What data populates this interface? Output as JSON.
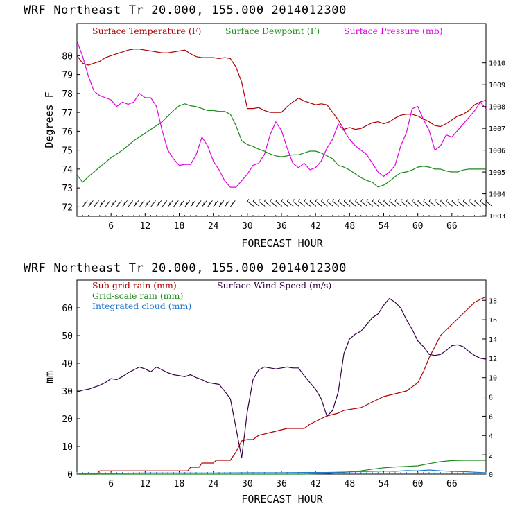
{
  "top_panel": {
    "title": "WRF  Northeast Tr  20.000, 155.000  2014012300",
    "ylabel": "Degrees F",
    "xlabel": "FORECAST HOUR"
  },
  "bottom_panel": {
    "title": "WRF  Northeast Tr  20.000, 155.000  2014012300",
    "ylabel": "mm",
    "xlabel": "FORECAST HOUR"
  },
  "colors": {
    "temperature": "#b00000",
    "dewpoint": "#1a8a1a",
    "pressure": "#e000e0",
    "subgrid_rain": "#b00000",
    "gridscale_rain": "#1a8a1a",
    "cloud": "#1e78d0",
    "wind": "#330044",
    "wind_barb": "#000000"
  },
  "chart_data": [
    {
      "type": "line",
      "title": "WRF  Northeast Tr  20.000, 155.000  2014012300",
      "xlabel": "FORECAST HOUR",
      "ylabel": "Degrees F",
      "xlim": [
        0,
        72
      ],
      "x_ticks": [
        6,
        12,
        18,
        24,
        30,
        36,
        42,
        48,
        54,
        60,
        66
      ],
      "ylim": [
        71.5,
        81.7
      ],
      "y_ticks": [
        72,
        73,
        74,
        75,
        76,
        77,
        78,
        79,
        80
      ],
      "y2lim": [
        1002.97,
        1011.8
      ],
      "y2_ticks": [
        1003,
        1004,
        1005,
        1006,
        1007,
        1008,
        1009,
        1010
      ],
      "grid": false,
      "legend_position": "top",
      "series": [
        {
          "name": "Surface Temperature (F)",
          "axis": "left",
          "x": [
            0,
            1,
            2,
            3,
            4,
            5,
            6,
            7,
            8,
            9,
            10,
            11,
            12,
            13,
            14,
            15,
            16,
            17,
            18,
            19,
            20,
            21,
            22,
            23,
            24,
            25,
            26,
            27,
            28,
            29,
            30,
            31,
            32,
            33,
            34,
            35,
            36,
            37,
            38,
            39,
            40,
            41,
            42,
            43,
            44,
            45,
            46,
            47,
            48,
            49,
            50,
            51,
            52,
            53,
            54,
            55,
            56,
            57,
            58,
            59,
            60,
            61,
            62,
            63,
            64,
            65,
            66,
            67,
            68,
            69,
            70,
            71,
            72
          ],
          "values": [
            80.0,
            79.6,
            79.5,
            79.6,
            79.7,
            79.9,
            80.0,
            80.1,
            80.2,
            80.3,
            80.35,
            80.35,
            80.3,
            80.25,
            80.2,
            80.15,
            80.15,
            80.2,
            80.25,
            80.3,
            80.1,
            79.95,
            79.9,
            79.9,
            79.9,
            79.85,
            79.9,
            79.85,
            79.4,
            78.6,
            77.2,
            77.2,
            77.25,
            77.1,
            77.0,
            77.0,
            77.0,
            77.3,
            77.55,
            77.75,
            77.6,
            77.5,
            77.4,
            77.45,
            77.4,
            77.0,
            76.6,
            76.1,
            76.2,
            76.1,
            76.15,
            76.3,
            76.45,
            76.5,
            76.4,
            76.5,
            76.7,
            76.85,
            76.9,
            76.9,
            76.8,
            76.65,
            76.5,
            76.3,
            76.25,
            76.4,
            76.6,
            76.8,
            76.9,
            77.1,
            77.4,
            77.55,
            77.65
          ]
        },
        {
          "name": "Surface Dewpoint (F)",
          "axis": "left",
          "x": [
            0,
            1,
            2,
            3,
            4,
            5,
            6,
            7,
            8,
            9,
            10,
            11,
            12,
            13,
            14,
            15,
            16,
            17,
            18,
            19,
            20,
            21,
            22,
            23,
            24,
            25,
            26,
            27,
            28,
            29,
            30,
            31,
            32,
            33,
            34,
            35,
            36,
            37,
            38,
            39,
            40,
            41,
            42,
            43,
            44,
            45,
            46,
            47,
            48,
            49,
            50,
            51,
            52,
            53,
            54,
            55,
            56,
            57,
            58,
            59,
            60,
            61,
            62,
            63,
            64,
            65,
            66,
            67,
            68,
            69,
            70,
            71,
            72
          ],
          "values": [
            73.7,
            73.3,
            73.6,
            73.85,
            74.1,
            74.35,
            74.6,
            74.8,
            75.0,
            75.25,
            75.5,
            75.7,
            75.9,
            76.1,
            76.3,
            76.5,
            76.8,
            77.1,
            77.35,
            77.45,
            77.35,
            77.3,
            77.2,
            77.1,
            77.1,
            77.05,
            77.05,
            76.9,
            76.3,
            75.5,
            75.3,
            75.2,
            75.05,
            74.95,
            74.8,
            74.7,
            74.65,
            74.7,
            74.75,
            74.75,
            74.85,
            74.95,
            74.95,
            74.85,
            74.7,
            74.55,
            74.2,
            74.1,
            73.95,
            73.75,
            73.55,
            73.4,
            73.3,
            73.05,
            73.15,
            73.35,
            73.6,
            73.8,
            73.85,
            73.95,
            74.1,
            74.15,
            74.1,
            74.0,
            74.0,
            73.9,
            73.85,
            73.85,
            73.95,
            74.0,
            74.0,
            74.0,
            74.0
          ]
        },
        {
          "name": "Surface Pressure (mb)",
          "axis": "right",
          "x": [
            0,
            1,
            2,
            3,
            4,
            5,
            6,
            7,
            8,
            9,
            10,
            11,
            12,
            13,
            14,
            15,
            16,
            17,
            18,
            19,
            20,
            21,
            22,
            23,
            24,
            25,
            26,
            27,
            28,
            29,
            30,
            31,
            32,
            33,
            34,
            35,
            36,
            37,
            38,
            39,
            40,
            41,
            42,
            43,
            44,
            45,
            46,
            47,
            48,
            49,
            50,
            51,
            52,
            53,
            54,
            55,
            56,
            57,
            58,
            59,
            60,
            61,
            62,
            63,
            64,
            65,
            66,
            67,
            68,
            69,
            70,
            71,
            72
          ],
          "values": [
            1011.0,
            1010.3,
            1009.4,
            1008.7,
            1008.5,
            1008.4,
            1008.3,
            1008.0,
            1008.2,
            1008.1,
            1008.2,
            1008.6,
            1008.4,
            1008.4,
            1008.0,
            1006.9,
            1006.0,
            1005.6,
            1005.3,
            1005.35,
            1005.35,
            1005.8,
            1006.6,
            1006.2,
            1005.5,
            1005.1,
            1004.6,
            1004.3,
            1004.3,
            1004.6,
            1004.9,
            1005.3,
            1005.4,
            1005.8,
            1006.7,
            1007.3,
            1006.9,
            1006.1,
            1005.4,
            1005.2,
            1005.4,
            1005.1,
            1005.2,
            1005.5,
            1006.1,
            1006.5,
            1007.2,
            1006.9,
            1006.5,
            1006.2,
            1006.0,
            1005.8,
            1005.4,
            1005.0,
            1004.8,
            1005.0,
            1005.3,
            1006.2,
            1006.8,
            1007.9,
            1008.0,
            1007.4,
            1006.9,
            1006.0,
            1006.2,
            1006.7,
            1006.6,
            1006.9,
            1007.2,
            1007.5,
            1007.8,
            1008.2,
            1007.9
          ]
        }
      ],
      "wind_barbs": {
        "x_start": 1,
        "x_end": 72,
        "gap": [
          27.5,
          29.5
        ]
      }
    },
    {
      "type": "line",
      "title": "WRF  Northeast Tr  20.000, 155.000  2014012300",
      "xlabel": "FORECAST HOUR",
      "ylabel": "mm",
      "xlim": [
        0,
        72
      ],
      "x_ticks": [
        6,
        12,
        18,
        24,
        30,
        36,
        42,
        48,
        54,
        60,
        66
      ],
      "ylim": [
        0,
        70
      ],
      "y_ticks": [
        0,
        10,
        20,
        30,
        40,
        50,
        60
      ],
      "y2lim": [
        0,
        20.1
      ],
      "y2_ticks": [
        0,
        2,
        4,
        6,
        8,
        10,
        12,
        14,
        16,
        18
      ],
      "grid": false,
      "legend_position": "top",
      "series": [
        {
          "name": "Sub-grid rain (mm)",
          "axis": "left",
          "x": [
            0,
            3.5,
            4,
            19.5,
            20,
            21.5,
            22,
            24,
            24.5,
            27,
            28,
            29,
            30,
            31,
            32,
            34,
            36,
            37,
            40,
            41,
            43,
            44,
            46,
            47,
            50,
            52,
            54,
            56,
            58,
            60,
            61,
            62,
            63,
            64,
            66,
            68,
            70,
            72
          ],
          "values": [
            0,
            0,
            1.2,
            1.2,
            2.5,
            2.5,
            4,
            4,
            5,
            5,
            8,
            12,
            12.5,
            12.5,
            14,
            15,
            16,
            16.5,
            16.5,
            18,
            20,
            21,
            22,
            23,
            24,
            26,
            28,
            29,
            30,
            33,
            37,
            42,
            46,
            50,
            54,
            58,
            62,
            64
          ]
        },
        {
          "name": "Grid-scale rain (mm)",
          "axis": "left",
          "x": [
            0,
            40,
            44,
            46,
            48,
            50,
            52,
            54,
            56,
            58,
            60,
            62,
            64,
            66,
            68,
            70,
            72
          ],
          "values": [
            0,
            0,
            0.2,
            0.5,
            0.8,
            1.2,
            1.8,
            2.3,
            2.6,
            2.8,
            3.0,
            3.8,
            4.5,
            4.9,
            5.0,
            5.0,
            5.0
          ]
        },
        {
          "name": "Integrated cloud (mm)",
          "axis": "left",
          "x": [
            0,
            6,
            12,
            18,
            24,
            30,
            36,
            40,
            44,
            48,
            52,
            54,
            56,
            58,
            60,
            62,
            64,
            66,
            68,
            70,
            72
          ],
          "values": [
            0.3,
            0.3,
            0.4,
            0.4,
            0.4,
            0.5,
            0.5,
            0.6,
            0.6,
            0.8,
            1.0,
            1.1,
            1.0,
            1.3,
            1.2,
            1.5,
            1.2,
            1.0,
            0.9,
            0.7,
            0.5
          ]
        },
        {
          "name": "Surface Wind Speed (m/s)",
          "axis": "right",
          "x": [
            0,
            1,
            2,
            3,
            4,
            5,
            6,
            7,
            8,
            9,
            10,
            11,
            12,
            13,
            14,
            15,
            16,
            17,
            18,
            19,
            20,
            21,
            22,
            23,
            24,
            25,
            26,
            27,
            28,
            29,
            30,
            31,
            32,
            33,
            34,
            35,
            36,
            37,
            38,
            39,
            40,
            41,
            42,
            43,
            44,
            45,
            46,
            47,
            48,
            49,
            50,
            51,
            52,
            53,
            54,
            55,
            56,
            57,
            58,
            59,
            60,
            61,
            62,
            63,
            64,
            65,
            66,
            67,
            68,
            69,
            70,
            71,
            72
          ],
          "values": [
            8.5,
            8.7,
            8.8,
            9.0,
            9.2,
            9.5,
            9.9,
            9.8,
            10.1,
            10.5,
            10.8,
            11.1,
            10.9,
            10.6,
            11.1,
            10.8,
            10.5,
            10.3,
            10.2,
            10.1,
            10.3,
            10.0,
            9.8,
            9.5,
            9.4,
            9.3,
            8.6,
            7.8,
            4.8,
            1.7,
            6.5,
            9.8,
            10.8,
            11.1,
            11.0,
            10.9,
            11.0,
            11.1,
            11.0,
            11.0,
            10.2,
            9.5,
            8.8,
            7.8,
            6.0,
            6.6,
            8.5,
            12.5,
            14.0,
            14.5,
            14.8,
            15.5,
            16.2,
            16.6,
            17.5,
            18.2,
            17.8,
            17.2,
            16.0,
            15.0,
            13.8,
            13.2,
            12.4,
            12.3,
            12.4,
            12.8,
            13.3,
            13.4,
            13.2,
            12.7,
            12.3,
            12.0,
            11.9
          ]
        }
      ]
    }
  ]
}
